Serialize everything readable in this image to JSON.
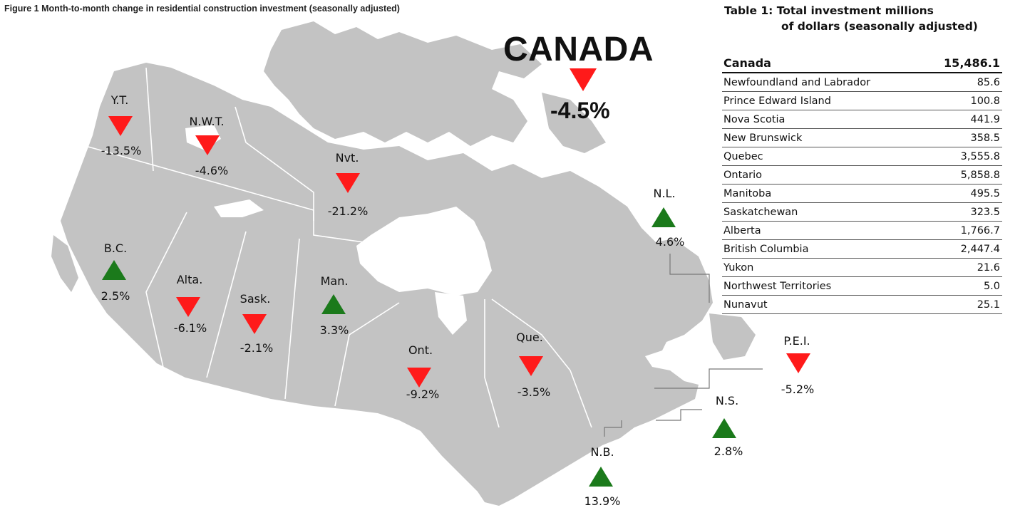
{
  "figure": {
    "title": "Figure 1  Month-to-month change in residential construction investment (seasonally adjusted)"
  },
  "national": {
    "name": "CANADA",
    "change": "-4.5%",
    "direction": "down"
  },
  "regions": [
    {
      "id": "yt",
      "label": "Y.T.",
      "change": "-13.5%",
      "direction": "down"
    },
    {
      "id": "nwt",
      "label": "N.W.T.",
      "change": "-4.6%",
      "direction": "down"
    },
    {
      "id": "nvt",
      "label": "Nvt.",
      "change": "-21.2%",
      "direction": "down"
    },
    {
      "id": "bc",
      "label": "B.C.",
      "change": "2.5%",
      "direction": "up"
    },
    {
      "id": "alta",
      "label": "Alta.",
      "change": "-6.1%",
      "direction": "down"
    },
    {
      "id": "sask",
      "label": "Sask.",
      "change": "-2.1%",
      "direction": "down"
    },
    {
      "id": "man",
      "label": "Man.",
      "change": "3.3%",
      "direction": "up"
    },
    {
      "id": "ont",
      "label": "Ont.",
      "change": "-9.2%",
      "direction": "down"
    },
    {
      "id": "que",
      "label": "Que.",
      "change": "-3.5%",
      "direction": "down"
    },
    {
      "id": "nl",
      "label": "N.L.",
      "change": "4.6%",
      "direction": "up"
    },
    {
      "id": "pei",
      "label": "P.E.I.",
      "change": "-5.2%",
      "direction": "down"
    },
    {
      "id": "ns",
      "label": "N.S.",
      "change": "2.8%",
      "direction": "up"
    },
    {
      "id": "nb",
      "label": "N.B.",
      "change": "13.9%",
      "direction": "up"
    }
  ],
  "colors": {
    "down": "#ff1a1a",
    "up": "#1b7a1b",
    "land": "#c3c3c3"
  },
  "table": {
    "title_line1": "Table 1: Total investment millions",
    "title_line2": "of dollars (seasonally adjusted)",
    "header": {
      "name": "Canada",
      "value": "15,486.1"
    },
    "rows": [
      {
        "name": "Newfoundland and Labrador",
        "value": "85.6"
      },
      {
        "name": "Prince Edward Island",
        "value": "100.8"
      },
      {
        "name": "Nova Scotia",
        "value": "441.9"
      },
      {
        "name": "New Brunswick",
        "value": "358.5"
      },
      {
        "name": "Quebec",
        "value": "3,555.8"
      },
      {
        "name": "Ontario",
        "value": "5,858.8"
      },
      {
        "name": "Manitoba",
        "value": "495.5"
      },
      {
        "name": "Saskatchewan",
        "value": "323.5"
      },
      {
        "name": "Alberta",
        "value": "1,766.7"
      },
      {
        "name": "British Columbia",
        "value": "2,447.4"
      },
      {
        "name": "Yukon",
        "value": "21.6"
      },
      {
        "name": "Northwest Territories",
        "value": "5.0"
      },
      {
        "name": "Nunavut",
        "value": "25.1"
      }
    ]
  }
}
